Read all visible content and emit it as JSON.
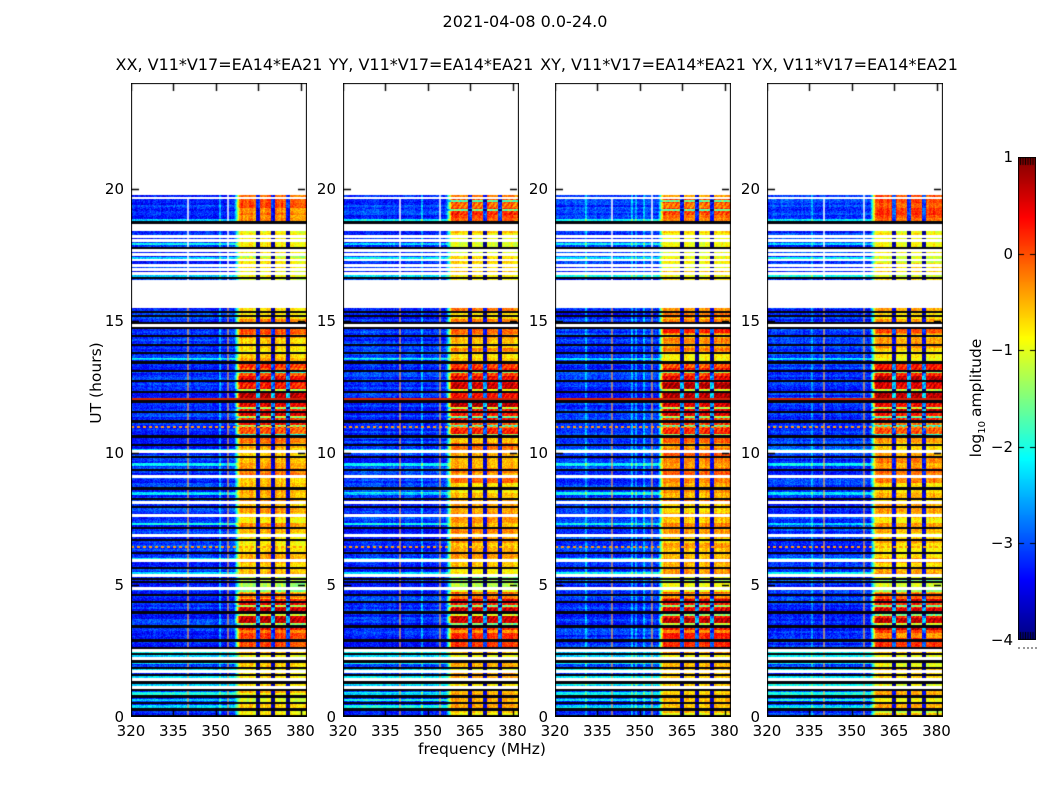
{
  "chart_data": {
    "type": "heatmap",
    "title": "2021-04-08 0.0-24.0",
    "xlabel": "frequency (MHz)",
    "ylabel": "UT (hours)",
    "xlim": [
      320,
      382.3
    ],
    "ylim": [
      0,
      24
    ],
    "xticks": [
      320,
      335,
      350,
      365,
      380
    ],
    "yticks": [
      0,
      5,
      10,
      15,
      20
    ],
    "panels": [
      {
        "title": "XX, V11*V17=EA14*EA21",
        "seed": 11,
        "gain": 0.0
      },
      {
        "title": "YY, V11*V17=EA14*EA21",
        "seed": 23,
        "gain": 0.06
      },
      {
        "title": "XY, V11*V17=EA14*EA21",
        "seed": 37,
        "gain": 0.1
      },
      {
        "title": "YX, V11*V17=EA14*EA21",
        "seed": 51,
        "gain": 0.04
      }
    ],
    "colorbar": {
      "label": "log10 amplitude",
      "label_main": "log",
      "label_sub": "10",
      "label_rest": "amplitude",
      "ticks": [
        1,
        0,
        -1,
        -2,
        -3,
        -4
      ],
      "vmin": -4,
      "vmax": 1,
      "colormap": "jet"
    },
    "background_level": -3.15,
    "data_segments": [
      [
        0,
        15.47
      ],
      [
        16.55,
        17.62
      ],
      [
        17.7,
        18.38
      ],
      [
        18.68,
        19.6
      ],
      [
        19.68,
        19.76
      ]
    ],
    "rfi_band": {
      "f_start": 358.5,
      "f_end": 382.3,
      "edge_ramp_start": 356.5,
      "subband_gaps": [
        [
          364.6,
          365.4
        ],
        [
          369.9,
          370.7
        ],
        [
          375.3,
          376.1
        ]
      ],
      "time_profile": [
        [
          0,
          0.35,
          -0.95
        ],
        [
          0.35,
          2.55,
          -0.75
        ],
        [
          2.55,
          3.3,
          -0.15
        ],
        [
          3.3,
          4.45,
          0.4
        ],
        [
          4.45,
          4.75,
          -0.35
        ],
        [
          4.75,
          5.3,
          -1.25
        ],
        [
          5.3,
          8.85,
          -0.6
        ],
        [
          8.85,
          10.55,
          -0.45
        ],
        [
          10.55,
          11.35,
          0.05
        ],
        [
          11.35,
          12.9,
          0.5
        ],
        [
          12.9,
          13.35,
          0.05
        ],
        [
          13.35,
          13.85,
          -0.7
        ],
        [
          13.85,
          14.5,
          -0.45
        ],
        [
          14.5,
          15.05,
          -0.15
        ],
        [
          15.05,
          15.47,
          -0.55
        ],
        [
          16.55,
          17.62,
          -0.95
        ],
        [
          17.7,
          18.38,
          -0.9
        ],
        [
          18.68,
          19.0,
          -0.25
        ],
        [
          19.0,
          19.6,
          -0.05
        ],
        [
          19.68,
          19.76,
          -0.3
        ]
      ]
    },
    "stripes": {
      "flag_black": [
        0.28,
        0.52,
        0.78,
        1.02,
        1.3,
        1.58,
        1.85,
        2.1,
        2.38,
        2.62,
        2.9,
        3.42,
        3.95,
        4.35,
        4.62,
        5.1,
        5.22,
        5.65,
        6.2,
        6.7,
        7.15,
        7.95,
        8.25,
        8.65,
        9.35,
        9.85,
        10.3,
        10.62,
        11.18,
        11.55,
        11.95,
        12.3,
        12.72,
        13.1,
        13.42,
        13.78,
        14.08,
        14.42,
        14.72,
        14.92,
        15.18,
        15.34,
        16.62,
        17.75,
        18.72,
        19.64
      ],
      "white_gaps": [
        1.12,
        1.42,
        1.72,
        2.22,
        2.52,
        4.88,
        5.35,
        5.92,
        6.88,
        7.62,
        8.12,
        9.12,
        10.05,
        14.82,
        16.8,
        16.95,
        17.1,
        17.3,
        17.52,
        18.05,
        18.2
      ],
      "bright_cyan": [
        0.4,
        0.65,
        0.9,
        1.2,
        1.5,
        1.8,
        2.05,
        2.3,
        2.48,
        5.45,
        5.95,
        7.3,
        8.45,
        9.55,
        10.1,
        13.55,
        16.7,
        17.35,
        17.9,
        18.8
      ],
      "red_lines": [
        12.03
      ],
      "orange_dotted": [
        1.15,
        4.9,
        6.43,
        10.98
      ]
    },
    "white_vlines": [
      {
        "f": 354.5,
        "t0": 0,
        "t1": 19.76
      },
      {
        "f": 340.1,
        "t0": 0,
        "t1": 19.6
      }
    ]
  }
}
